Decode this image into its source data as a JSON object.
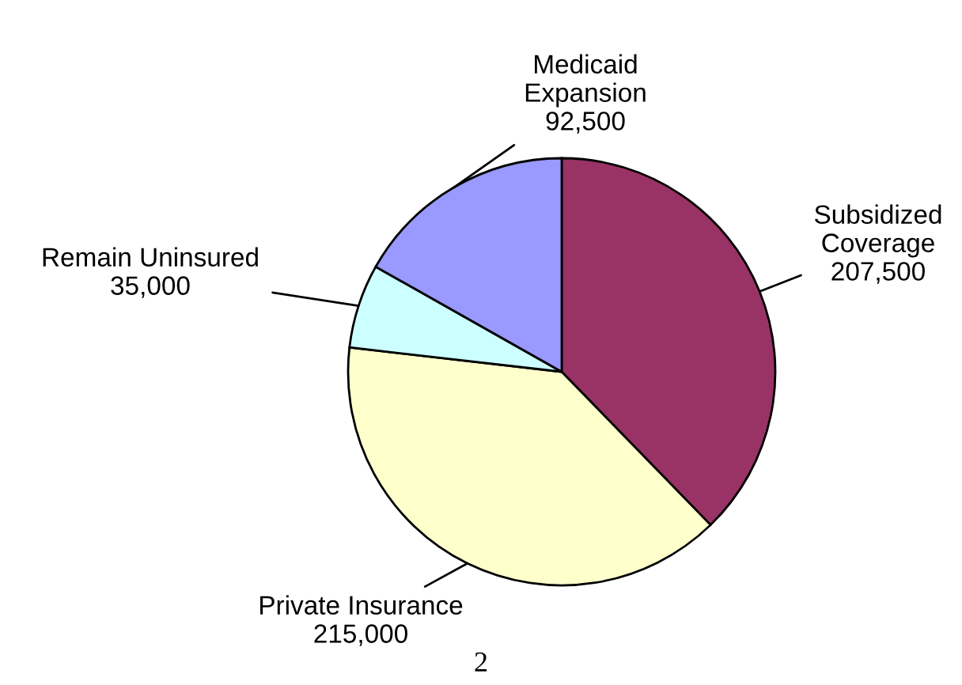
{
  "chart_data": {
    "type": "pie",
    "categories": [
      "Subsidized\nCoverage",
      "Private Insurance",
      "Remain Uninsured",
      "Medicaid\nExpansion"
    ],
    "values": [
      207500,
      215000,
      35000,
      92500
    ],
    "colors": [
      "#993366",
      "#ffffcc",
      "#ccffff",
      "#9999ff"
    ],
    "value_labels": [
      "207,500",
      "215,000",
      "35,000",
      "92,500"
    ],
    "annotations": [
      "2"
    ]
  }
}
